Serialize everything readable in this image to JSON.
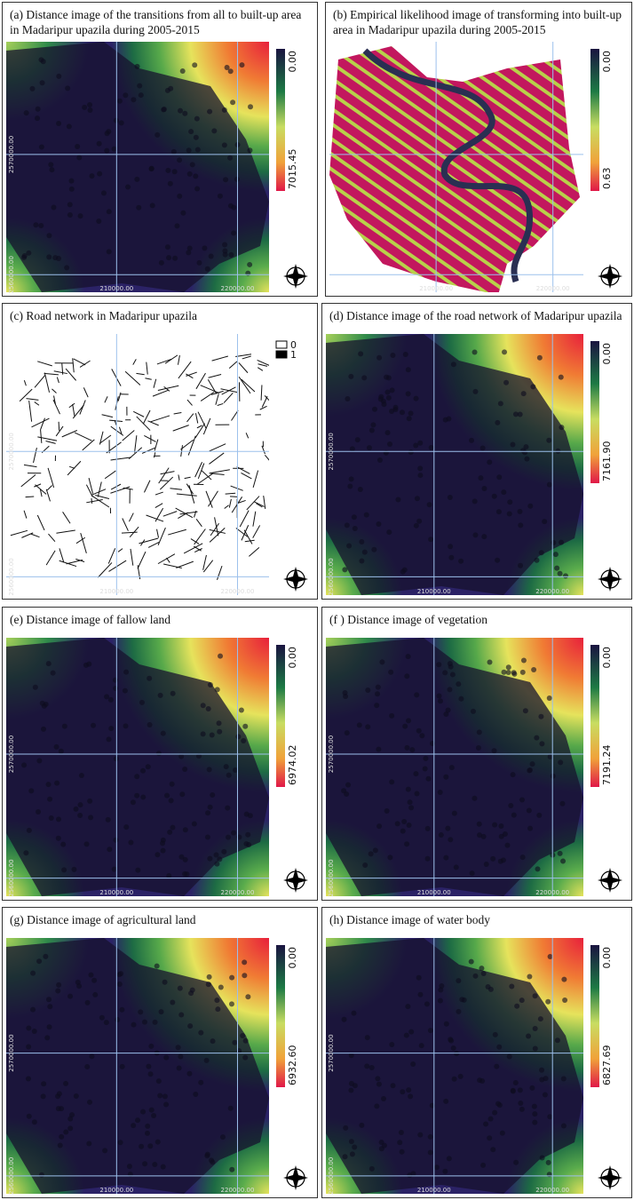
{
  "panels": [
    {
      "caption": "(a) Distance image of the transitions from all to built-up area in Madaripur upazila during 2005-2015",
      "legend": [
        "0.00",
        "7015.45"
      ],
      "y_coords": [
        "2570000.00",
        "2560000.00"
      ],
      "x_coords": [
        "210000.00",
        "220000.00"
      ]
    },
    {
      "caption": "(b) Empirical likelihood image of transforming into built-up area in Madaripur upazila during 2005-2015",
      "legend": [
        "0.00",
        "0.63"
      ],
      "y_coords": [],
      "x_coords": [
        "210000.00",
        "220000.00"
      ]
    },
    {
      "caption": "(c) Road network in Madaripur upazila",
      "legend": [
        "0",
        "1"
      ],
      "y_coords": [
        "2570000.00",
        "2560000.00"
      ],
      "x_coords": [
        "210000.00",
        "220000.00"
      ]
    },
    {
      "caption": "(d) Distance image of the road network of Madaripur upazila",
      "legend": [
        "0.00",
        "7161.90"
      ],
      "y_coords": [
        "2570000.00",
        "2560000.00"
      ],
      "x_coords": [
        "210000.00",
        "220000.00"
      ]
    },
    {
      "caption": "(e) Distance image of fallow land",
      "legend": [
        "0.00",
        "6974.02"
      ],
      "y_coords": [
        "2570000.00",
        "2560000.00"
      ],
      "x_coords": [
        "210000.00",
        "220000.00"
      ]
    },
    {
      "caption": "(f ) Distance image of vegetation",
      "legend": [
        "0.00",
        "7191.24"
      ],
      "y_coords": [
        "2570000.00",
        "2560000.00"
      ],
      "x_coords": [
        "210000.00",
        "220000.00"
      ]
    },
    {
      "caption": "(g) Distance image of agricultural land",
      "legend": [
        "0.00",
        "6932.60"
      ],
      "y_coords": [
        "2570000.00",
        "2560000.00"
      ],
      "x_coords": [
        "210000.00",
        "220000.00"
      ]
    },
    {
      "caption": "(h) Distance image of water body",
      "legend": [
        "0.00",
        "6827.69"
      ],
      "y_coords": [
        "2570000.00",
        "2560000.00"
      ],
      "x_coords": [
        "210000.00",
        "220000.00"
      ]
    }
  ]
}
